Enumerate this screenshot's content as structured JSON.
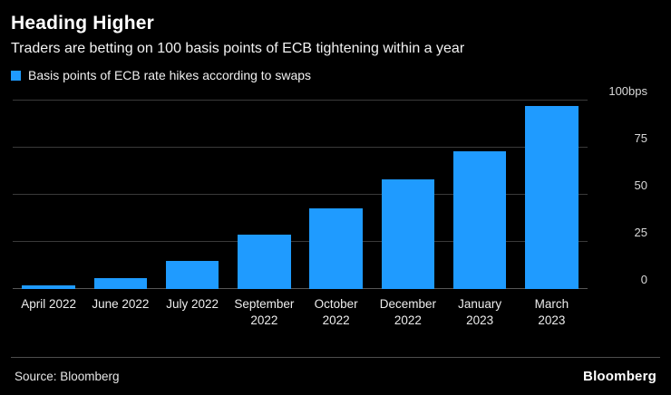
{
  "chart_data": {
    "type": "bar",
    "title": "Heading Higher",
    "subtitle": "Traders are betting on 100 basis points of ECB tightening within a year",
    "legend": "Basis points of ECB rate hikes according to swaps",
    "categories": [
      [
        "April 2022"
      ],
      [
        "June 2022"
      ],
      [
        "July 2022"
      ],
      [
        "September",
        "2022"
      ],
      [
        "October",
        "2022"
      ],
      [
        "December",
        "2022"
      ],
      [
        "January",
        "2023"
      ],
      [
        "March",
        "2023"
      ]
    ],
    "values": [
      2,
      6,
      15,
      29,
      43,
      58,
      73,
      97
    ],
    "ylim": [
      0,
      100
    ],
    "yticks": [
      0,
      25,
      50,
      75,
      100
    ],
    "ytick_labels": [
      "0",
      "25",
      "50",
      "75",
      "100bps"
    ],
    "bar_color": "#1f9bff",
    "background_color": "#000000",
    "gridline_color": "#3a3a3a",
    "grid": "horizontal",
    "legend_position": "top-left",
    "source": "Source: Bloomberg",
    "logo": "Bloomberg"
  }
}
